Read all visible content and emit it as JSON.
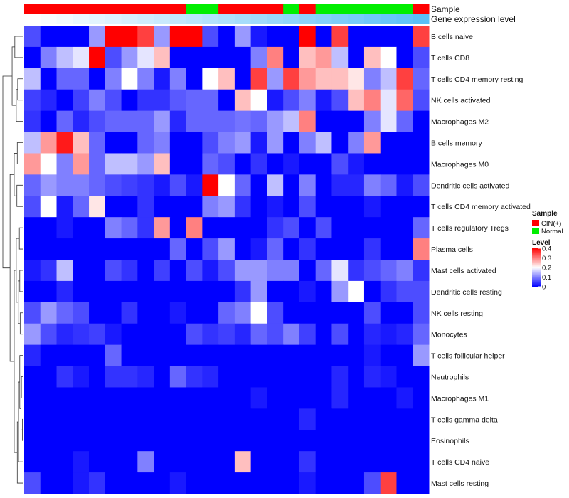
{
  "chart_data": {
    "type": "heatmap",
    "title": "",
    "annotation_tracks": [
      {
        "name": "Sample",
        "values": [
          "CIN(+)",
          "CIN(+)",
          "CIN(+)",
          "CIN(+)",
          "CIN(+)",
          "CIN(+)",
          "CIN(+)",
          "CIN(+)",
          "CIN(+)",
          "CIN(+)",
          "Normal",
          "Normal",
          "CIN(+)",
          "CIN(+)",
          "CIN(+)",
          "CIN(+)",
          "Normal",
          "CIN(+)",
          "Normal",
          "Normal",
          "Normal",
          "Normal",
          "Normal",
          "Normal",
          "CIN(+)"
        ]
      },
      {
        "name": "Gene expression level",
        "values": [
          0.0,
          0.04,
          0.08,
          0.13,
          0.17,
          0.21,
          0.25,
          0.29,
          0.33,
          0.38,
          0.42,
          0.46,
          0.5,
          0.54,
          0.58,
          0.63,
          0.67,
          0.71,
          0.75,
          0.79,
          0.83,
          0.88,
          0.92,
          0.96,
          1.0
        ]
      }
    ],
    "rows": [
      "B cells naive",
      "T cells CD8",
      "T cells CD4 memory resting",
      "NK cells activated",
      "Macrophages M2",
      "B cells memory",
      "Macrophages M0",
      "Dendritic cells activated",
      "T cells CD4 memory activated",
      "T cells regulatory  Tregs",
      "Plasma cells",
      "Mast cells activated",
      "Dendritic cells resting",
      "NK cells resting",
      "Monocytes",
      "T cells follicular helper",
      "Neutrophils",
      "Macrophages M1",
      "T cells gamma delta",
      "Eosinophils",
      "T cells CD4 naive",
      "Mast cells resting"
    ],
    "values": [
      [
        0.06,
        0.0,
        0.0,
        0.0,
        0.12,
        0.4,
        0.4,
        0.35,
        0.12,
        0.4,
        0.4,
        0.06,
        0.0,
        0.12,
        0.02,
        0.0,
        0.0,
        0.4,
        0.0,
        0.35,
        0.0,
        0.0,
        0.0,
        0.0,
        0.35
      ],
      [
        0.0,
        0.1,
        0.15,
        0.18,
        0.4,
        0.06,
        0.12,
        0.18,
        0.25,
        0.0,
        0.0,
        0.0,
        0.0,
        0.0,
        0.1,
        0.3,
        0.0,
        0.25,
        0.28,
        0.15,
        0.0,
        0.25,
        0.2,
        0.0,
        0.06
      ],
      [
        0.15,
        0.0,
        0.08,
        0.08,
        0.0,
        0.1,
        0.2,
        0.1,
        0.02,
        0.1,
        0.0,
        0.2,
        0.25,
        0.0,
        0.35,
        0.12,
        0.35,
        0.28,
        0.25,
        0.25,
        0.22,
        0.1,
        0.15,
        0.35,
        0.08
      ],
      [
        0.05,
        0.03,
        0.0,
        0.05,
        0.1,
        0.06,
        0.0,
        0.04,
        0.04,
        0.07,
        0.08,
        0.08,
        0.0,
        0.25,
        0.2,
        0.02,
        0.06,
        0.1,
        0.02,
        0.06,
        0.25,
        0.3,
        0.18,
        0.32,
        0.06
      ],
      [
        0.04,
        0.0,
        0.08,
        0.03,
        0.06,
        0.08,
        0.08,
        0.08,
        0.12,
        0.03,
        0.08,
        0.08,
        0.08,
        0.09,
        0.08,
        0.12,
        0.15,
        0.3,
        0.0,
        0.0,
        0.0,
        0.1,
        0.18,
        0.08,
        0.0
      ],
      [
        0.15,
        0.28,
        0.38,
        0.25,
        0.08,
        0.0,
        0.0,
        0.08,
        0.1,
        0.0,
        0.0,
        0.06,
        0.1,
        0.12,
        0.02,
        0.12,
        0.0,
        0.1,
        0.15,
        0.0,
        0.1,
        0.28,
        0.0,
        0.0,
        0.0
      ],
      [
        0.28,
        0.2,
        0.1,
        0.28,
        0.08,
        0.15,
        0.15,
        0.12,
        0.25,
        0.0,
        0.0,
        0.08,
        0.06,
        0.0,
        0.04,
        0.0,
        0.02,
        0.0,
        0.0,
        0.06,
        0.02,
        0.0,
        0.0,
        0.0,
        0.0
      ],
      [
        0.08,
        0.12,
        0.1,
        0.1,
        0.08,
        0.06,
        0.05,
        0.04,
        0.02,
        0.06,
        0.02,
        0.4,
        0.2,
        0.08,
        0.0,
        0.15,
        0.0,
        0.1,
        0.0,
        0.03,
        0.03,
        0.1,
        0.08,
        0.02,
        0.06
      ],
      [
        0.06,
        0.2,
        0.02,
        0.08,
        0.22,
        0.0,
        0.0,
        0.04,
        0.0,
        0.0,
        0.0,
        0.1,
        0.12,
        0.04,
        0.0,
        0.02,
        0.0,
        0.06,
        0.0,
        0.0,
        0.0,
        0.02,
        0.0,
        0.0,
        0.0
      ],
      [
        0.0,
        0.0,
        0.02,
        0.0,
        0.0,
        0.1,
        0.08,
        0.04,
        0.28,
        0.0,
        0.3,
        0.0,
        0.0,
        0.0,
        0.0,
        0.04,
        0.06,
        0.0,
        0.06,
        0.0,
        0.0,
        0.0,
        0.0,
        0.0,
        0.08
      ],
      [
        0.0,
        0.0,
        0.0,
        0.0,
        0.0,
        0.0,
        0.0,
        0.0,
        0.0,
        0.08,
        0.0,
        0.06,
        0.12,
        0.0,
        0.02,
        0.08,
        0.0,
        0.04,
        0.0,
        0.0,
        0.0,
        0.04,
        0.0,
        0.0,
        0.3
      ],
      [
        0.02,
        0.04,
        0.15,
        0.0,
        0.0,
        0.06,
        0.04,
        0.0,
        0.05,
        0.0,
        0.06,
        0.02,
        0.06,
        0.12,
        0.12,
        0.1,
        0.1,
        0.0,
        0.08,
        0.18,
        0.04,
        0.06,
        0.08,
        0.1,
        0.04
      ],
      [
        0.0,
        0.0,
        0.03,
        0.0,
        0.0,
        0.0,
        0.0,
        0.0,
        0.0,
        0.0,
        0.0,
        0.0,
        0.0,
        0.04,
        0.12,
        0.0,
        0.0,
        0.02,
        0.0,
        0.12,
        0.2,
        0.0,
        0.04,
        0.06,
        0.06
      ],
      [
        0.06,
        0.12,
        0.08,
        0.06,
        0.0,
        0.0,
        0.04,
        0.0,
        0.0,
        0.02,
        0.0,
        0.0,
        0.08,
        0.1,
        0.2,
        0.06,
        0.0,
        0.0,
        0.0,
        0.0,
        0.0,
        0.06,
        0.0,
        0.0,
        0.06
      ],
      [
        0.12,
        0.06,
        0.03,
        0.04,
        0.05,
        0.02,
        0.0,
        0.0,
        0.0,
        0.0,
        0.06,
        0.04,
        0.05,
        0.03,
        0.08,
        0.06,
        0.1,
        0.05,
        0.0,
        0.06,
        0.0,
        0.03,
        0.02,
        0.03,
        0.08
      ],
      [
        0.03,
        0.0,
        0.0,
        0.0,
        0.0,
        0.08,
        0.0,
        0.0,
        0.0,
        0.0,
        0.0,
        0.0,
        0.0,
        0.0,
        0.0,
        0.0,
        0.0,
        0.0,
        0.0,
        0.0,
        0.0,
        0.02,
        0.0,
        0.0,
        0.12
      ],
      [
        0.0,
        0.0,
        0.04,
        0.02,
        0.0,
        0.04,
        0.04,
        0.03,
        0.0,
        0.08,
        0.04,
        0.03,
        0.0,
        0.0,
        0.0,
        0.0,
        0.0,
        0.0,
        0.0,
        0.03,
        0.0,
        0.03,
        0.02,
        0.0,
        0.0
      ],
      [
        0.0,
        0.0,
        0.0,
        0.0,
        0.0,
        0.0,
        0.0,
        0.0,
        0.0,
        0.0,
        0.0,
        0.0,
        0.0,
        0.0,
        0.02,
        0.0,
        0.0,
        0.0,
        0.0,
        0.03,
        0.0,
        0.0,
        0.0,
        0.02,
        0.0
      ],
      [
        0.0,
        0.0,
        0.0,
        0.0,
        0.0,
        0.0,
        0.0,
        0.0,
        0.0,
        0.0,
        0.0,
        0.0,
        0.0,
        0.0,
        0.0,
        0.0,
        0.0,
        0.03,
        0.0,
        0.0,
        0.0,
        0.0,
        0.0,
        0.0,
        0.0
      ],
      [
        0.0,
        0.0,
        0.0,
        0.0,
        0.0,
        0.0,
        0.0,
        0.0,
        0.0,
        0.0,
        0.0,
        0.0,
        0.0,
        0.0,
        0.0,
        0.0,
        0.0,
        0.0,
        0.0,
        0.0,
        0.0,
        0.0,
        0.0,
        0.0,
        0.0
      ],
      [
        0.0,
        0.0,
        0.0,
        0.02,
        0.0,
        0.0,
        0.0,
        0.1,
        0.0,
        0.0,
        0.0,
        0.0,
        0.0,
        0.25,
        0.0,
        0.0,
        0.0,
        0.04,
        0.0,
        0.0,
        0.0,
        0.0,
        0.0,
        0.0,
        0.0
      ],
      [
        0.06,
        0.0,
        0.0,
        0.02,
        0.04,
        0.0,
        0.0,
        0.0,
        0.0,
        0.02,
        0.0,
        0.0,
        0.0,
        0.0,
        0.0,
        0.0,
        0.0,
        0.02,
        0.0,
        0.0,
        0.0,
        0.06,
        0.35,
        0.0,
        0.0
      ]
    ],
    "color_scale": {
      "name": "Level",
      "min": 0,
      "max": 0.4,
      "ticks": [
        0,
        0.1,
        0.2,
        0.3,
        0.4
      ],
      "tick_labels": [
        "0",
        "0.1",
        "0.2",
        "0.3",
        "0.4"
      ],
      "colors": [
        "#0000ff",
        "#ffffff",
        "#ff0000"
      ]
    },
    "legend": {
      "sample_title": "Sample",
      "sample_entries": [
        {
          "label": "CIN(+)",
          "color": "#ff0000"
        },
        {
          "label": "Normal",
          "color": "#00ee00"
        }
      ],
      "placement": "right"
    },
    "expression_track_colors": [
      "#ffffff",
      "#5bc0f8"
    ]
  }
}
